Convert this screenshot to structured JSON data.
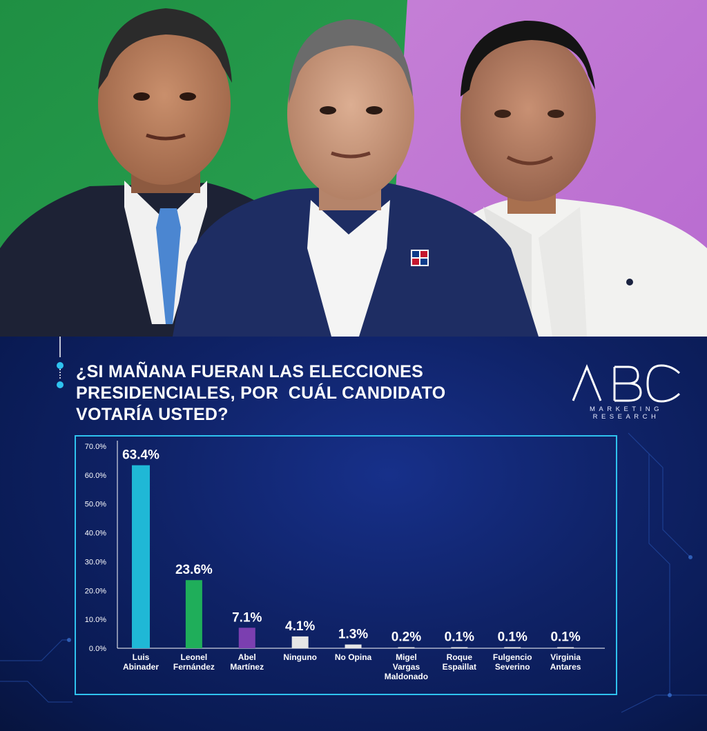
{
  "question": {
    "lines": [
      "¿SI MAÑANA FUERAN LAS ELECCIONES",
      "PRESIDENCIALES, POR  CUÁL CANDIDATO",
      "VOTARÍA USTED?"
    ]
  },
  "logo": {
    "brand": "ABC",
    "subtitle_lines": [
      "MARKETING",
      "RESEARCH"
    ]
  },
  "chart_data": {
    "type": "bar",
    "categories": [
      [
        "Luis",
        "Abinader"
      ],
      [
        "Leonel",
        "Fernández"
      ],
      [
        "Abel",
        "Martínez"
      ],
      [
        "Ninguno"
      ],
      [
        "No Opina"
      ],
      [
        "Migel",
        "Vargas",
        "Maldonado"
      ],
      [
        "Roque",
        "Espaillat"
      ],
      [
        "Fulgencio",
        "Severino"
      ],
      [
        "Virginia",
        "Antares"
      ]
    ],
    "values": [
      63.4,
      23.6,
      7.1,
      4.1,
      1.3,
      0.2,
      0.1,
      0.1,
      0.1
    ],
    "value_labels": [
      "63.4%",
      "23.6%",
      "7.1%",
      "4.1%",
      "1.3%",
      "0.2%",
      "0.1%",
      "0.1%",
      "0.1%"
    ],
    "bar_colors": [
      "#1fb8d6",
      "#1fae5a",
      "#7b3fb0",
      "#e6e6e6",
      "#e6e6e6",
      "#e6e6e6",
      "#e6e6e6",
      "#e6e6e6",
      "#e6e6e6"
    ],
    "ylim": [
      0,
      70
    ],
    "yticks": [
      "0.0%",
      "10.0%",
      "20.0%",
      "30.0%",
      "40.0%",
      "50.0%",
      "60.0%",
      "70.0%"
    ],
    "grid": false
  },
  "colors": {
    "accent": "#2fc3ef",
    "left_background": "#23994a",
    "right_background": "#c77ad6"
  }
}
